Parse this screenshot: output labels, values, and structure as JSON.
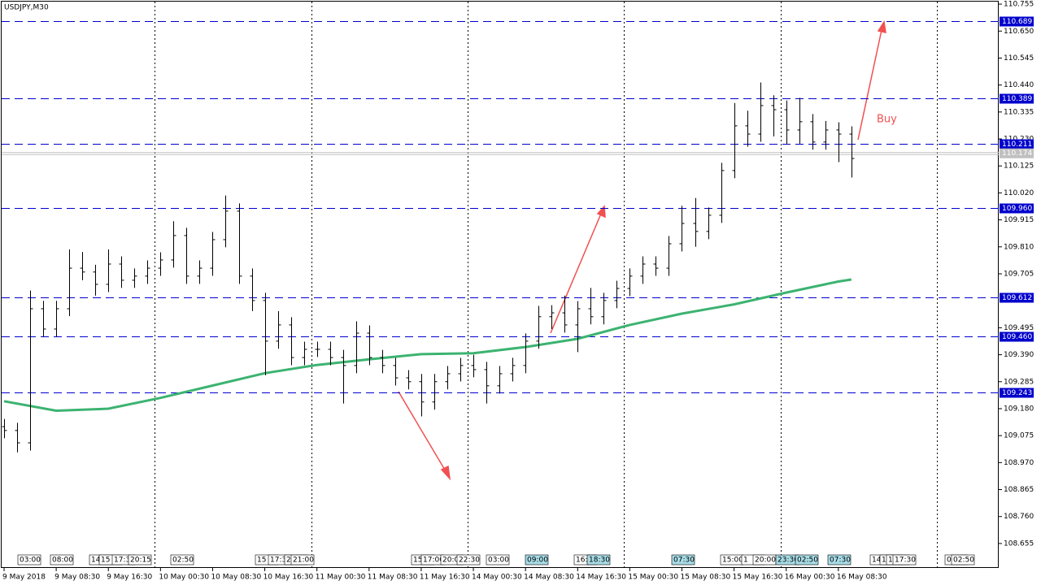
{
  "chart_data": {
    "type": "ohlc",
    "title": "USDJPY,M30",
    "ylim": [
      108.62,
      110.771
    ],
    "yticks": [
      {
        "value": 110.755,
        "label": "110.755"
      },
      {
        "value": 110.65,
        "label": "110.650"
      },
      {
        "value": 110.545,
        "label": "110.545"
      },
      {
        "value": 110.44,
        "label": "110.440"
      },
      {
        "value": 110.335,
        "label": "110.335"
      },
      {
        "value": 110.23,
        "label": "110.230"
      },
      {
        "value": 110.125,
        "label": "110.125"
      },
      {
        "value": 110.02,
        "label": "110.020"
      },
      {
        "value": 109.915,
        "label": "109.915"
      },
      {
        "value": 109.81,
        "label": "109.810"
      },
      {
        "value": 109.705,
        "label": "109.705"
      },
      {
        "value": 109.495,
        "label": "109.495"
      },
      {
        "value": 109.39,
        "label": "109.390"
      },
      {
        "value": 109.285,
        "label": "109.285"
      },
      {
        "value": 109.18,
        "label": "109.180"
      },
      {
        "value": 109.075,
        "label": "109.075"
      },
      {
        "value": 108.97,
        "label": "108.970"
      },
      {
        "value": 108.865,
        "label": "108.865"
      },
      {
        "value": 108.76,
        "label": "108.760"
      },
      {
        "value": 108.655,
        "label": "108.655"
      }
    ],
    "xlim": [
      0,
      76.3
    ],
    "bar_color": "#000000",
    "open": [
      109.11,
      109.095,
      109.047,
      109.569,
      109.49,
      109.569,
      109.727,
      109.712,
      109.664,
      109.743,
      109.68,
      109.696,
      109.727,
      109.759,
      109.854,
      109.696,
      109.727,
      109.838,
      109.949,
      109.696,
      109.601,
      109.443,
      109.506,
      109.379,
      109.411,
      109.411,
      109.379,
      109.348,
      109.474,
      109.379,
      109.348,
      109.3,
      109.285,
      109.206,
      109.285,
      109.316,
      109.348,
      109.332,
      109.269,
      109.316,
      109.348,
      109.443,
      109.538,
      109.553,
      109.506,
      109.569,
      109.538,
      109.601,
      109.648,
      109.696,
      109.743,
      109.727,
      109.822,
      109.901,
      109.87,
      109.933,
      110.107,
      110.281,
      110.249,
      110.36,
      110.344,
      110.265,
      110.297,
      110.218,
      110.265,
      110.249
    ],
    "high": [
      109.14,
      109.125,
      109.64,
      109.6,
      109.6,
      109.8,
      109.79,
      109.74,
      109.8,
      109.773,
      109.726,
      109.757,
      109.789,
      109.91,
      109.884,
      109.757,
      109.868,
      110.01,
      109.979,
      109.726,
      109.631,
      109.56,
      109.536,
      109.441,
      109.441,
      109.441,
      109.409,
      109.52,
      109.504,
      109.409,
      109.378,
      109.33,
      109.315,
      109.315,
      109.346,
      109.378,
      109.39,
      109.362,
      109.346,
      109.378,
      109.473,
      109.58,
      109.583,
      109.62,
      109.599,
      109.65,
      109.631,
      109.678,
      109.726,
      109.773,
      109.773,
      109.852,
      109.97,
      110.0,
      109.963,
      110.137,
      110.37,
      110.34,
      110.45,
      110.4,
      110.38,
      110.39,
      110.327,
      110.3,
      110.295,
      110.279
    ],
    "low": [
      109.065,
      109.01,
      109.017,
      109.46,
      109.46,
      109.54,
      109.68,
      109.62,
      109.634,
      109.65,
      109.65,
      109.666,
      109.697,
      109.729,
      109.666,
      109.666,
      109.697,
      109.808,
      109.666,
      109.56,
      109.31,
      109.413,
      109.349,
      109.349,
      109.381,
      109.349,
      109.2,
      109.318,
      109.349,
      109.318,
      109.27,
      109.255,
      109.15,
      109.176,
      109.255,
      109.286,
      109.302,
      109.2,
      109.239,
      109.286,
      109.318,
      109.413,
      109.49,
      109.476,
      109.4,
      109.508,
      109.508,
      109.571,
      109.618,
      109.666,
      109.697,
      109.697,
      109.792,
      109.81,
      109.84,
      109.903,
      110.077,
      110.2,
      110.219,
      110.24,
      110.21,
      110.21,
      110.188,
      110.188,
      110.14,
      110.08
    ],
    "close": [
      109.095,
      109.047,
      109.569,
      109.49,
      109.569,
      109.727,
      109.712,
      109.664,
      109.743,
      109.68,
      109.696,
      109.727,
      109.759,
      109.854,
      109.696,
      109.727,
      109.838,
      109.949,
      109.696,
      109.601,
      109.443,
      109.506,
      109.379,
      109.411,
      109.411,
      109.379,
      109.348,
      109.474,
      109.379,
      109.348,
      109.3,
      109.285,
      109.206,
      109.285,
      109.316,
      109.348,
      109.332,
      109.269,
      109.316,
      109.348,
      109.443,
      109.538,
      109.553,
      109.506,
      109.569,
      109.538,
      109.601,
      109.648,
      109.696,
      109.743,
      109.727,
      109.822,
      109.901,
      109.87,
      109.933,
      110.107,
      110.281,
      110.249,
      110.36,
      110.344,
      110.265,
      110.297,
      110.218,
      110.265,
      110.249,
      110.154
    ],
    "ma": {
      "color": "#3cb371",
      "x": [
        0,
        4,
        8,
        12,
        16,
        20,
        24,
        28,
        32,
        36,
        40,
        44,
        48,
        52,
        56,
        60,
        64,
        65
      ],
      "values": [
        109.209,
        109.172,
        109.18,
        109.222,
        109.27,
        109.318,
        109.35,
        109.372,
        109.392,
        109.396,
        109.42,
        109.452,
        109.506,
        109.55,
        109.586,
        109.632,
        109.675,
        109.683
      ]
    },
    "levels": {
      "color": "#0000cc",
      "values": [
        110.689,
        110.389,
        110.211,
        109.96,
        109.612,
        109.46,
        109.243
      ],
      "labels": [
        "110.689",
        "110.389",
        "110.211",
        "109.960",
        "109.612",
        "109.460",
        "109.243"
      ]
    },
    "current_price": {
      "value": 110.174,
      "label": "110.174"
    },
    "vgrid": [
      11.5625,
      23.5625,
      35.5625,
      47.5625,
      59.5625,
      71.5625
    ],
    "xticks": {
      "x": [
        0,
        4,
        8,
        12,
        16,
        20,
        24,
        28,
        32,
        36,
        40,
        44,
        48,
        52,
        56,
        60,
        64
      ],
      "labels": [
        "9 May 2018",
        "9 May 08:30",
        "9 May 16:30",
        "10 May 00:30",
        "10 May 08:30",
        "10 May 16:30",
        "11 May 00:30",
        "11 May 08:30",
        "11 May 16:30",
        "14 May 00:30",
        "14 May 08:30",
        "14 May 16:30",
        "15 May 00:30",
        "15 May 08:30",
        "15 May 16:30",
        "16 May 00:30",
        "16 May 08:30"
      ]
    },
    "time_markers": [
      "03:00",
      "08:00",
      "14",
      "15",
      "17:3",
      "20:15",
      "02:50",
      "15",
      "17:3",
      "2",
      "21:00",
      "15",
      "17:00",
      "20:00",
      "22:30",
      "03:00",
      "09:00",
      "16:",
      "18:30",
      "07:30",
      "15:00",
      "1",
      "20:00",
      "23:30",
      "02:50",
      "07:30",
      "14",
      "1",
      "16",
      "17:30",
      "0",
      "02:50"
    ],
    "annotation": "Buy"
  }
}
